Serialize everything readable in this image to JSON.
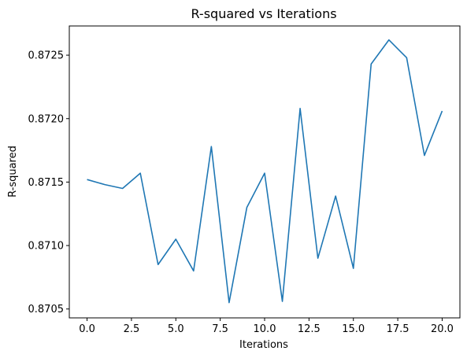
{
  "chart_data": {
    "type": "line",
    "title": "R-squared vs Iterations",
    "xlabel": "Iterations",
    "ylabel": "R-squared",
    "xlim": [
      -1.0,
      21.0
    ],
    "ylim": [
      0.87043,
      0.87273
    ],
    "x_ticks": [
      0.0,
      2.5,
      5.0,
      7.5,
      10.0,
      12.5,
      15.0,
      17.5,
      20.0
    ],
    "x_tick_labels": [
      "0.0",
      "2.5",
      "5.0",
      "7.5",
      "10.0",
      "12.5",
      "15.0",
      "17.5",
      "20.0"
    ],
    "y_ticks": [
      0.8705,
      0.871,
      0.8715,
      0.872,
      0.8725
    ],
    "y_tick_labels": [
      "0.8705",
      "0.8710",
      "0.8715",
      "0.8720",
      "0.8725"
    ],
    "grid": false,
    "line_color": "#1f77b4",
    "series": [
      {
        "x": [
          0,
          1,
          2,
          3,
          4,
          5,
          6,
          7,
          8,
          9,
          10,
          11,
          12,
          13,
          14,
          15,
          16,
          17,
          18,
          19,
          20
        ],
        "values": [
          0.87152,
          0.87148,
          0.87145,
          0.87157,
          0.87085,
          0.87105,
          0.8708,
          0.87178,
          0.87055,
          0.8713,
          0.87157,
          0.87056,
          0.87208,
          0.8709,
          0.87139,
          0.87082,
          0.87243,
          0.87262,
          0.87248,
          0.87171,
          0.87206
        ]
      }
    ]
  }
}
